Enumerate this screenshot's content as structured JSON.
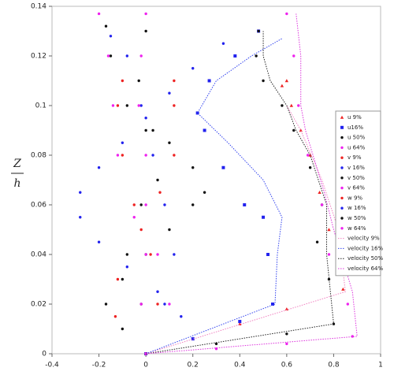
{
  "chart_data": {
    "type": "scatter",
    "ylabel_numerator": "Z",
    "ylabel_denominator": "h",
    "xlim": [
      -0.4,
      1
    ],
    "xticks": [
      -0.4,
      -0.2,
      0,
      0.2,
      0.4,
      0.6,
      0.8,
      1
    ],
    "ylim": [
      0,
      0.14
    ],
    "yticks": [
      0,
      0.02,
      0.04,
      0.06,
      0.08,
      0.1,
      0.12,
      0.14
    ],
    "legend": "right",
    "series": [
      {
        "name": "u 9%",
        "color": "#ee2222",
        "marker": "triangle",
        "x": [
          0,
          0.2,
          0.4,
          0.6,
          0.84,
          0.82,
          0.78,
          0.74,
          0.7,
          0.66,
          0.62,
          0.58,
          0.6
        ],
        "values": [
          0,
          0.006,
          0.012,
          0.018,
          0.026,
          0.035,
          0.05,
          0.065,
          0.08,
          0.09,
          0.1,
          0.108,
          0.11
        ]
      },
      {
        "name": "u16%",
        "color": "#2222ee",
        "marker": "square",
        "x": [
          0,
          0.2,
          0.4,
          0.54,
          0.52,
          0.5,
          0.42,
          0.33,
          0.25,
          0.22,
          0.27,
          0.38,
          0.48
        ],
        "values": [
          0,
          0.006,
          0.013,
          0.02,
          0.04,
          0.055,
          0.06,
          0.075,
          0.09,
          0.097,
          0.11,
          0.12,
          0.13
        ]
      },
      {
        "name": "u 50%",
        "color": "#111111",
        "marker": "circle",
        "x": [
          0,
          0.3,
          0.6,
          0.8,
          0.78,
          0.73,
          0.75,
          0.7,
          0.63,
          0.58,
          0.5,
          0.47,
          0.48
        ],
        "values": [
          0,
          0.004,
          0.008,
          0.012,
          0.03,
          0.045,
          0.06,
          0.075,
          0.09,
          0.1,
          0.11,
          0.12,
          0.13
        ]
      },
      {
        "name": "u 64%",
        "color": "#ee22ee",
        "marker": "circle",
        "x": [
          0,
          0.3,
          0.6,
          0.88,
          0.86,
          0.78,
          0.75,
          0.69,
          0.65,
          0.63,
          0.6
        ],
        "values": [
          0,
          0.002,
          0.004,
          0.007,
          0.02,
          0.04,
          0.06,
          0.08,
          0.1,
          0.12,
          0.137
        ]
      },
      {
        "name": "v 9%",
        "color": "#ee2222",
        "marker": "circle",
        "x": [
          0,
          -0.13,
          -0.12,
          -0.02,
          0.06,
          0.12,
          0.12,
          0.12
        ],
        "values": [
          0,
          0.015,
          0.03,
          0.05,
          0.065,
          0.08,
          0.1,
          0.11
        ]
      },
      {
        "name": "v 16%",
        "color": "#2222ee",
        "marker": "circle",
        "x": [
          0,
          0.15,
          0.05,
          -0.08,
          -0.2,
          -0.28,
          -0.28,
          -0.2,
          -0.1,
          0,
          0.1,
          0.2,
          0.33
        ],
        "values": [
          0,
          0.015,
          0.025,
          0.035,
          0.045,
          0.055,
          0.065,
          0.075,
          0.085,
          0.095,
          0.105,
          0.115,
          0.125
        ]
      },
      {
        "name": "v 50%",
        "color": "#111111",
        "marker": "circle",
        "x": [
          0,
          -0.1,
          -0.17,
          -0.1,
          0,
          0.1,
          0.2,
          0.25,
          0.2,
          0.1,
          0,
          -0.08,
          -0.15,
          -0.17
        ],
        "values": [
          0,
          0.01,
          0.02,
          0.03,
          0.04,
          0.05,
          0.06,
          0.065,
          0.075,
          0.085,
          0.09,
          0.1,
          0.12,
          0.132
        ]
      },
      {
        "name": "v 64%",
        "color": "#ee22ee",
        "marker": "circle",
        "x": [
          0,
          0.1,
          0.05,
          -0.05,
          -0.12,
          -0.14,
          -0.16,
          -0.2
        ],
        "values": [
          0,
          0.02,
          0.04,
          0.055,
          0.08,
          0.1,
          0.12,
          0.137
        ]
      },
      {
        "name": "w 9%",
        "color": "#ee2222",
        "marker": "circle",
        "x": [
          0,
          0.05,
          0.02,
          -0.05,
          -0.1,
          -0.12,
          -0.1
        ],
        "values": [
          0,
          0.02,
          0.04,
          0.06,
          0.08,
          0.1,
          0.11
        ]
      },
      {
        "name": "w 16%",
        "color": "#2222ee",
        "marker": "circle",
        "x": [
          0,
          0.08,
          0.12,
          0.08,
          0.03,
          -0.02,
          -0.08,
          -0.15
        ],
        "values": [
          0,
          0.02,
          0.04,
          0.06,
          0.08,
          0.1,
          0.12,
          0.128
        ]
      },
      {
        "name": "w 50%",
        "color": "#111111",
        "marker": "circle",
        "x": [
          0,
          -0.02,
          -0.08,
          -0.02,
          0.05,
          0.03,
          -0.03,
          0
        ],
        "values": [
          0,
          0.02,
          0.04,
          0.06,
          0.07,
          0.09,
          0.11,
          0.13
        ]
      },
      {
        "name": "w 64%",
        "color": "#ee22ee",
        "marker": "circle",
        "x": [
          0,
          -0.02,
          0,
          0,
          0,
          -0.03,
          -0.02,
          0
        ],
        "values": [
          0,
          0.02,
          0.04,
          0.06,
          0.08,
          0.1,
          0.12,
          0.137
        ]
      },
      {
        "name": "velocity 9%",
        "color": "#f080c0",
        "marker": "none",
        "x": [
          0,
          0.85,
          0.82,
          0.75,
          0.66,
          0.6
        ],
        "values": [
          0,
          0.025,
          0.05,
          0.07,
          0.09,
          0.1
        ]
      },
      {
        "name": "velocity 16%",
        "color": "#3344ee",
        "marker": "none",
        "x": [
          0,
          0.55,
          0.56,
          0.58,
          0.5,
          0.35,
          0.22,
          0.3,
          0.45,
          0.58
        ],
        "values": [
          0,
          0.02,
          0.04,
          0.055,
          0.07,
          0.085,
          0.097,
          0.11,
          0.12,
          0.127
        ]
      },
      {
        "name": "velocity 50%",
        "color": "#222222",
        "marker": "none",
        "x": [
          0,
          0.8,
          0.77,
          0.77,
          0.7,
          0.64,
          0.6,
          0.53,
          0.5,
          0.5
        ],
        "values": [
          0,
          0.012,
          0.04,
          0.06,
          0.08,
          0.09,
          0.1,
          0.11,
          0.12,
          0.13
        ]
      },
      {
        "name": "velocity 64%",
        "color": "#dd33dd",
        "marker": "none",
        "x": [
          0,
          0.9,
          0.88,
          0.8,
          0.76,
          0.68,
          0.66,
          0.66,
          0.64
        ],
        "values": [
          0,
          0.007,
          0.025,
          0.05,
          0.065,
          0.09,
          0.1,
          0.12,
          0.137
        ]
      }
    ]
  }
}
